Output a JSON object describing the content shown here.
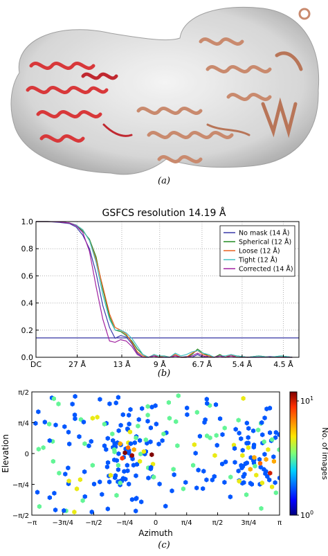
{
  "captions": {
    "a": "(a)",
    "b": "(b)",
    "c": "(c)"
  },
  "chart_data": [
    {
      "type": "line",
      "title": "GSFCS resolution 14.19 Å",
      "xlabel": "",
      "ylabel": "",
      "xlim": [
        0,
        0.236
      ],
      "ylim": [
        0,
        1.0
      ],
      "x_unit": "spatial frequency (1/Å)",
      "yticks": [
        "0.0",
        "0.2",
        "0.4",
        "0.6",
        "0.8",
        "1.0"
      ],
      "yticks_values": [
        0.0,
        0.2,
        0.4,
        0.6,
        0.8,
        1.0
      ],
      "xticks": [
        "DC",
        "27 Å",
        "13 Å",
        "9 Å",
        "6.7 Å",
        "5.4 Å",
        "4.5 Å"
      ],
      "xticks_values": [
        0,
        0.037,
        0.077,
        0.111,
        0.149,
        0.185,
        0.222
      ],
      "threshold": {
        "value": 0.143,
        "color": "#3030a0"
      },
      "grid": true,
      "legend_position": "top-right",
      "series": [
        {
          "name": "No mask (14 Å)",
          "color": "#3838a8",
          "x": [
            0,
            0.01,
            0.02,
            0.03,
            0.036,
            0.042,
            0.048,
            0.054,
            0.06,
            0.066,
            0.071,
            0.076,
            0.081,
            0.086,
            0.091,
            0.096,
            0.101,
            0.106,
            0.11,
            0.115,
            0.12,
            0.125,
            0.13,
            0.135,
            0.14,
            0.145,
            0.15,
            0.155,
            0.16,
            0.165,
            0.17,
            0.175,
            0.18,
            0.19,
            0.2,
            0.21,
            0.22,
            0.23
          ],
          "y": [
            1.0,
            1.0,
            0.995,
            0.985,
            0.96,
            0.9,
            0.8,
            0.62,
            0.38,
            0.22,
            0.14,
            0.16,
            0.15,
            0.1,
            0.03,
            0.0,
            0.0,
            0.01,
            0.0,
            0.0,
            0.0,
            0.01,
            0.0,
            0.005,
            0.0,
            0.02,
            0.0,
            0.01,
            0.0,
            0.01,
            0.0,
            0.02,
            0.01,
            0.0,
            0.0,
            0.005,
            0.0,
            0.0
          ]
        },
        {
          "name": "Spherical (12 Å)",
          "color": "#228b22",
          "x": [
            0,
            0.01,
            0.02,
            0.03,
            0.036,
            0.042,
            0.048,
            0.054,
            0.06,
            0.066,
            0.071,
            0.076,
            0.081,
            0.086,
            0.091,
            0.096,
            0.101,
            0.106,
            0.11,
            0.115,
            0.12,
            0.125,
            0.13,
            0.135,
            0.14,
            0.145,
            0.15,
            0.155,
            0.16,
            0.165,
            0.17,
            0.175,
            0.18,
            0.19,
            0.2,
            0.21,
            0.22,
            0.23
          ],
          "y": [
            1.0,
            1.0,
            0.998,
            0.99,
            0.97,
            0.93,
            0.87,
            0.74,
            0.5,
            0.3,
            0.2,
            0.19,
            0.16,
            0.12,
            0.06,
            0.02,
            0.0,
            0.02,
            0.0,
            0.01,
            0.0,
            0.02,
            0.0,
            0.0,
            0.02,
            0.06,
            0.03,
            0.01,
            0.0,
            0.02,
            0.0,
            0.01,
            0.01,
            0.0,
            0.01,
            0.0,
            0.01,
            0.0
          ]
        },
        {
          "name": "Loose (12 Å)",
          "color": "#e86020",
          "x": [
            0,
            0.01,
            0.02,
            0.03,
            0.036,
            0.042,
            0.048,
            0.054,
            0.06,
            0.066,
            0.071,
            0.076,
            0.081,
            0.086,
            0.091,
            0.096,
            0.101,
            0.106,
            0.11,
            0.115,
            0.12,
            0.125,
            0.13,
            0.135,
            0.14,
            0.145,
            0.15,
            0.155,
            0.16,
            0.165,
            0.17,
            0.175,
            0.18,
            0.19,
            0.2,
            0.21,
            0.22,
            0.23
          ],
          "y": [
            1.0,
            1.0,
            0.998,
            0.99,
            0.975,
            0.94,
            0.86,
            0.72,
            0.52,
            0.32,
            0.22,
            0.2,
            0.17,
            0.11,
            0.04,
            0.01,
            0.0,
            0.02,
            0.0,
            0.01,
            0.0,
            0.02,
            0.0,
            0.0,
            0.03,
            0.05,
            0.02,
            0.01,
            0.0,
            0.01,
            0.0,
            0.02,
            0.0,
            0.0,
            0.01,
            0.0,
            0.0,
            0.0
          ]
        },
        {
          "name": "Tight (12 Å)",
          "color": "#40c0c0",
          "x": [
            0,
            0.01,
            0.02,
            0.03,
            0.036,
            0.042,
            0.048,
            0.054,
            0.06,
            0.066,
            0.071,
            0.076,
            0.081,
            0.086,
            0.091,
            0.096,
            0.101,
            0.106,
            0.11,
            0.115,
            0.12,
            0.125,
            0.13,
            0.135,
            0.14,
            0.145,
            0.15,
            0.155,
            0.16,
            0.165,
            0.17,
            0.175,
            0.18,
            0.19,
            0.2,
            0.21,
            0.22,
            0.23
          ],
          "y": [
            1.0,
            1.0,
            0.998,
            0.99,
            0.975,
            0.94,
            0.86,
            0.7,
            0.46,
            0.28,
            0.2,
            0.2,
            0.18,
            0.14,
            0.08,
            0.02,
            0.0,
            0.02,
            0.01,
            0.01,
            0.0,
            0.03,
            0.01,
            0.02,
            0.04,
            0.05,
            0.03,
            0.02,
            0.0,
            0.01,
            0.01,
            0.02,
            0.01,
            0.0,
            0.01,
            0.0,
            0.01,
            0.0
          ]
        },
        {
          "name": "Corrected (14 Å)",
          "color": "#a020a0",
          "x": [
            0,
            0.01,
            0.02,
            0.03,
            0.036,
            0.042,
            0.048,
            0.054,
            0.06,
            0.066,
            0.071,
            0.076,
            0.081,
            0.086,
            0.091,
            0.096,
            0.101,
            0.106,
            0.11,
            0.115,
            0.12,
            0.125,
            0.13,
            0.135,
            0.14,
            0.145,
            0.15,
            0.155,
            0.16,
            0.165,
            0.17,
            0.175,
            0.18,
            0.19,
            0.2,
            0.21,
            0.22,
            0.23
          ],
          "y": [
            1.0,
            1.0,
            0.998,
            0.99,
            0.97,
            0.92,
            0.78,
            0.52,
            0.28,
            0.12,
            0.11,
            0.13,
            0.12,
            0.08,
            0.02,
            0.0,
            0.0,
            0.01,
            0.0,
            0.0,
            0.0,
            0.01,
            0.0,
            0.0,
            0.01,
            0.03,
            0.01,
            0.0,
            0.0,
            0.01,
            0.0,
            0.01,
            0.0,
            0.0,
            0.0,
            0.0,
            0.0,
            0.0
          ]
        }
      ]
    },
    {
      "type": "heatmap",
      "title": "",
      "xlabel": "Azimuth",
      "ylabel": "Elevation",
      "xlim": [
        -3.1416,
        3.1416
      ],
      "ylim": [
        -1.5708,
        1.5708
      ],
      "xticks": [
        "−π",
        "−3π/4",
        "−π/2",
        "−π/4",
        "0",
        "π/4",
        "π/2",
        "3π/4",
        "π"
      ],
      "xticks_values": [
        -3.1416,
        -2.3562,
        -1.5708,
        -0.7854,
        0,
        0.7854,
        1.5708,
        2.3562,
        3.1416
      ],
      "yticks": [
        "π/2",
        "π/4",
        "0",
        "−π/4",
        "−π/2"
      ],
      "yticks_values": [
        1.5708,
        0.7854,
        0,
        -0.7854,
        -1.5708
      ],
      "colorbar_label": "No. of images",
      "colorbar_scale": "log",
      "colorbar_range": [
        1,
        12
      ],
      "colorbar_ticks": [
        {
          "base": "10",
          "exp": "1",
          "value": 10
        },
        {
          "base": "10",
          "exp": "0",
          "value": 1
        }
      ],
      "colormap": "jet",
      "points": [
        [
          -0.78,
          0.02,
          10
        ],
        [
          -0.6,
          -0.05,
          8
        ],
        [
          -0.1,
          -0.03,
          9
        ],
        [
          -0.7,
          0.15,
          5
        ],
        [
          -0.55,
          0.1,
          4
        ],
        [
          -0.85,
          -0.12,
          6
        ],
        [
          -0.4,
          -0.2,
          3
        ],
        [
          -0.9,
          0.25,
          4
        ],
        [
          -0.3,
          0.05,
          3
        ],
        [
          -0.5,
          0.4,
          2
        ],
        [
          -0.45,
          0.7,
          2
        ],
        [
          -0.65,
          0.55,
          3
        ],
        [
          -0.25,
          0.35,
          2
        ],
        [
          -0.95,
          -0.3,
          2
        ],
        [
          -1.05,
          0.1,
          2
        ],
        [
          2.9,
          -0.5,
          7
        ],
        [
          2.65,
          -0.25,
          5
        ],
        [
          2.5,
          -0.1,
          4
        ],
        [
          2.8,
          -0.15,
          4
        ],
        [
          2.35,
          0.15,
          3
        ],
        [
          3.0,
          -0.2,
          4
        ],
        [
          2.55,
          -0.55,
          3
        ],
        [
          2.7,
          -0.75,
          3
        ],
        [
          2.4,
          -0.4,
          4
        ],
        [
          2.95,
          -0.85,
          3
        ],
        [
          2.2,
          -0.05,
          3
        ],
        [
          2.75,
          0.3,
          2
        ],
        [
          2.6,
          0.6,
          2
        ],
        [
          2.85,
          0.1,
          3
        ],
        [
          3.05,
          -1.0,
          2
        ],
        [
          -2.2,
          -0.7,
          3
        ],
        [
          -2.45,
          -0.5,
          2
        ],
        [
          -2.0,
          -0.9,
          3
        ],
        [
          -2.6,
          -0.2,
          2
        ],
        [
          -2.85,
          0.15,
          2
        ],
        [
          -1.6,
          0.9,
          3
        ],
        [
          -1.3,
          0.75,
          2
        ],
        [
          -1.6,
          -0.3,
          2
        ],
        [
          -1.85,
          -1.2,
          2
        ],
        [
          -2.95,
          -1.35,
          2
        ],
        [
          0.2,
          0.5,
          2
        ],
        [
          0.35,
          0.9,
          2
        ],
        [
          0.45,
          -0.4,
          2
        ],
        [
          0.55,
          0.2,
          2
        ],
        [
          0.7,
          -0.9,
          2
        ],
        [
          1.3,
          0.45,
          2
        ],
        [
          1.05,
          1.05,
          2
        ],
        [
          1.5,
          -0.05,
          3
        ],
        [
          1.75,
          0.65,
          2
        ],
        [
          1.9,
          -0.6,
          2
        ],
        [
          -0.2,
          0.98,
          2
        ],
        [
          -1.1,
          0.5,
          2
        ],
        [
          -0.05,
          -0.6,
          2
        ],
        [
          2.1,
          0.85,
          2
        ],
        [
          2.3,
          -1.05,
          2
        ],
        [
          0.95,
          -0.3,
          2
        ],
        [
          -2.7,
          0.75,
          2
        ],
        [
          -1.8,
          0.25,
          2
        ],
        [
          -0.2,
          1.2,
          2
        ],
        [
          -0.9,
          -0.75,
          2
        ]
      ]
    }
  ]
}
